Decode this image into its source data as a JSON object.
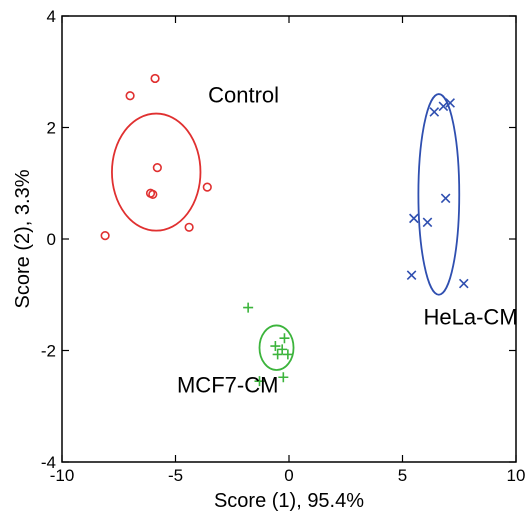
{
  "chart_data": {
    "type": "scatter",
    "title": "",
    "xlabel": "Score (1), 95.4%",
    "ylabel": "Score (2), 3.3%",
    "xlim": [
      -10,
      10
    ],
    "ylim": [
      -4,
      4
    ],
    "xticks": [
      -10,
      -5,
      0,
      5,
      10
    ],
    "yticks": [
      -4,
      -2,
      0,
      2,
      4
    ],
    "xtick_labels": [
      "-10",
      "-5",
      "0",
      "5",
      "10"
    ],
    "ytick_labels": [
      "-4",
      "-2",
      "0",
      "2",
      "4"
    ],
    "grid": false,
    "legend": "none",
    "series": [
      {
        "name": "Control",
        "marker": "circle",
        "color": "#e03030",
        "points": [
          {
            "x": -5.9,
            "y": 2.88
          },
          {
            "x": -7.0,
            "y": 2.57
          },
          {
            "x": -5.8,
            "y": 1.28
          },
          {
            "x": -6.1,
            "y": 0.82
          },
          {
            "x": -6.0,
            "y": 0.8
          },
          {
            "x": -3.6,
            "y": 0.93
          },
          {
            "x": -4.4,
            "y": 0.21
          },
          {
            "x": -8.1,
            "y": 0.06
          }
        ],
        "ellipse": {
          "cx": -5.85,
          "cy": 1.2,
          "rx": 1.95,
          "ry": 1.05
        }
      },
      {
        "name": "MCF7-CM",
        "marker": "plus",
        "color": "#3cb43c",
        "points": [
          {
            "x": -1.8,
            "y": -1.23
          },
          {
            "x": -0.2,
            "y": -1.78
          },
          {
            "x": -0.6,
            "y": -1.92
          },
          {
            "x": -0.3,
            "y": -1.98
          },
          {
            "x": -0.5,
            "y": -2.07
          },
          {
            "x": -0.05,
            "y": -2.07
          },
          {
            "x": -1.3,
            "y": -2.55
          },
          {
            "x": -0.25,
            "y": -2.48
          }
        ],
        "ellipse": {
          "cx": -0.55,
          "cy": -1.95,
          "rx": 0.75,
          "ry": 0.4
        }
      },
      {
        "name": "HeLa-CM",
        "marker": "x",
        "color": "#2f4fb0",
        "points": [
          {
            "x": 6.4,
            "y": 2.28
          },
          {
            "x": 6.8,
            "y": 2.38
          },
          {
            "x": 7.1,
            "y": 2.44
          },
          {
            "x": 6.9,
            "y": 0.73
          },
          {
            "x": 5.5,
            "y": 0.37
          },
          {
            "x": 6.1,
            "y": 0.3
          },
          {
            "x": 5.4,
            "y": -0.65
          },
          {
            "x": 7.7,
            "y": -0.8
          }
        ],
        "ellipse": {
          "cx": 6.6,
          "cy": 0.8,
          "rx": 0.9,
          "ry": 1.8
        }
      }
    ],
    "annotations": [
      {
        "text": "Control",
        "x": -2.0,
        "y": 2.45
      },
      {
        "text": "HeLa-CM",
        "x": 8.0,
        "y": -1.53
      },
      {
        "text": "MCF7-CM",
        "x": -2.7,
        "y": -2.75
      }
    ]
  }
}
